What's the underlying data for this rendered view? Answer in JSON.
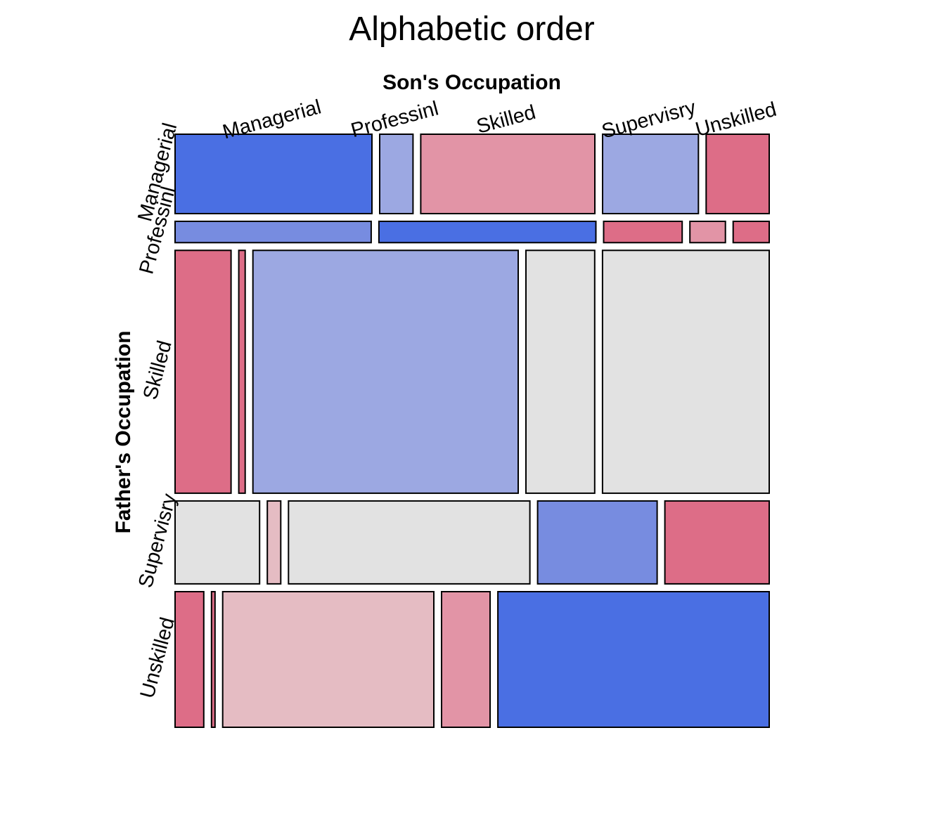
{
  "chart_data": {
    "type": "mosaic",
    "title": "Alphabetic order",
    "xlabel": "Son's Occupation",
    "ylabel": "Father's Occupation",
    "x_categories": [
      "Managerial",
      "Professinl",
      "Skilled",
      "Supervisry",
      "Unskilled"
    ],
    "y_categories": [
      "Managerial",
      "Professinl",
      "Skilled",
      "Supervisry",
      "Unskilled"
    ],
    "row_share": [
      0.134,
      0.036,
      0.41,
      0.14,
      0.229
    ],
    "cell_share": [
      [
        0.337,
        0.057,
        0.298,
        0.164,
        0.108
      ],
      [
        0.337,
        0.373,
        0.135,
        0.061,
        0.062
      ],
      [
        0.096,
        0.011,
        0.455,
        0.118,
        0.286
      ],
      [
        0.145,
        0.023,
        0.414,
        0.205,
        0.179
      ],
      [
        0.049,
        0.006,
        0.361,
        0.083,
        0.464
      ]
    ],
    "shading": [
      [
        "pos-strong",
        "pos-light",
        "neg-mid",
        "pos-light",
        "neg-strong"
      ],
      [
        "pos-mid",
        "pos-strong",
        "neg-strong",
        "neg-mid",
        "neg-strong"
      ],
      [
        "neg-strong",
        "neg-strong",
        "pos-light",
        "neutral",
        "neutral"
      ],
      [
        "neutral",
        "neg-light",
        "neutral",
        "pos-mid",
        "neg-strong"
      ],
      [
        "neg-strong",
        "neg-strong",
        "neg-light",
        "neg-mid",
        "pos-strong"
      ]
    ],
    "colors": {
      "pos-strong": "#4a6fe3",
      "pos-mid": "#778ce0",
      "pos-light": "#9ca8e2",
      "neutral": "#e2e2e2",
      "neg-light": "#e5bcc3",
      "neg-mid": "#e294a6",
      "neg-strong": "#dd6d87"
    }
  }
}
